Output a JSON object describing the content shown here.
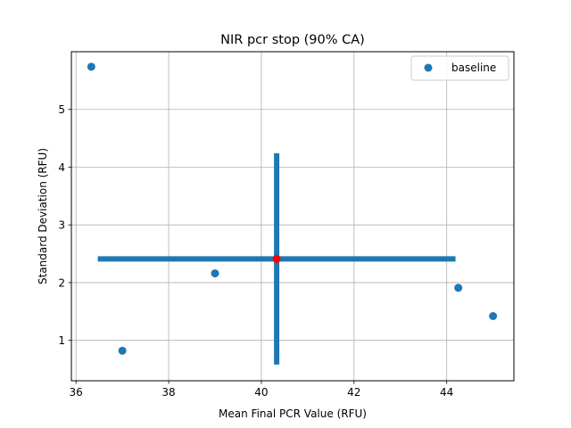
{
  "chart_data": {
    "type": "scatter",
    "title": "NIR pcr stop (90% CA)",
    "xlabel": "Mean Final PCR Value (RFU)",
    "ylabel": "Standard Deviation (RFU)",
    "xlim": [
      35.9,
      45.45
    ],
    "ylim": [
      0.3,
      6.0
    ],
    "xticks": [
      36,
      38,
      40,
      42,
      44
    ],
    "yticks": [
      1,
      2,
      3,
      4,
      5
    ],
    "grid": true,
    "legend_position": "top-right",
    "series": [
      {
        "name": "baseline",
        "color": "#1f77b4",
        "points": [
          {
            "x": 36.33,
            "y": 5.74
          },
          {
            "x": 37.0,
            "y": 0.82
          },
          {
            "x": 39.0,
            "y": 2.16
          },
          {
            "x": 44.25,
            "y": 1.91
          },
          {
            "x": 45.0,
            "y": 1.42
          }
        ]
      }
    ],
    "mean_point": {
      "x": 40.33,
      "y": 2.41,
      "color": "#ff0000"
    },
    "error_bars": {
      "color": "#1f77b4",
      "x_range": [
        36.47,
        44.19
      ],
      "y_range": [
        0.58,
        4.24
      ]
    }
  }
}
